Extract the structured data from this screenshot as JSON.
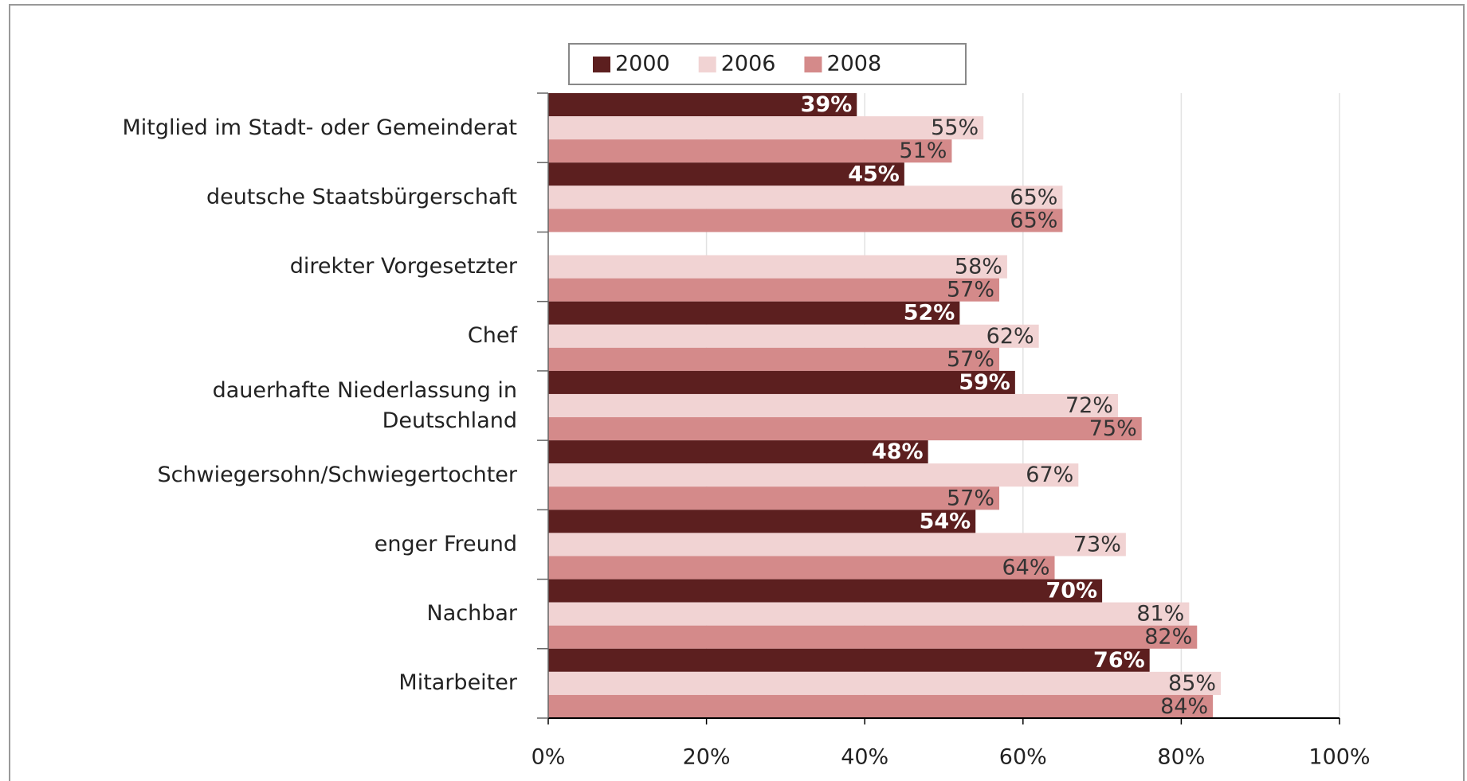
{
  "chart_data": {
    "type": "hbar",
    "categories": [
      "Mitglied im Stadt- oder Gemeinderat",
      "deutsche Staatsbürgerschaft",
      "direkter Vorgesetzter",
      "Chef",
      "dauerhafte Niederlassung in\nDeutschland",
      "Schwiegersohn/Schwiegertochter",
      "enger Freund",
      "Nachbar",
      "Mitarbeiter"
    ],
    "series": [
      {
        "name": "2000",
        "color": "#5c1f1f",
        "values": [
          39,
          45,
          null,
          52,
          59,
          48,
          54,
          70,
          76
        ],
        "value_labels": [
          "39%",
          "45%",
          null,
          "52%",
          "59%",
          "48%",
          "54%",
          "70%",
          "76%"
        ]
      },
      {
        "name": "2006",
        "color": "#f1d3d3",
        "values": [
          55,
          65,
          58,
          62,
          72,
          67,
          73,
          81,
          85
        ],
        "value_labels": [
          "55%",
          "65%",
          "58%",
          "62%",
          "72%",
          "67%",
          "73%",
          "81%",
          "85%"
        ]
      },
      {
        "name": "2008",
        "color": "#d48a8a",
        "values": [
          51,
          65,
          57,
          57,
          75,
          57,
          64,
          82,
          84
        ],
        "value_labels": [
          "51%",
          "65%",
          "57%",
          "57%",
          "75%",
          "57%",
          "64%",
          "82%",
          "84%"
        ]
      }
    ],
    "xlim": [
      0,
      100
    ],
    "xticks": [
      {
        "value": 0,
        "label": "0%"
      },
      {
        "value": 20,
        "label": "20%"
      },
      {
        "value": 40,
        "label": "40%"
      },
      {
        "value": 60,
        "label": "60%"
      },
      {
        "value": 80,
        "label": "80%"
      },
      {
        "value": 100,
        "label": "100%"
      }
    ],
    "grid": true,
    "legend": "top"
  }
}
